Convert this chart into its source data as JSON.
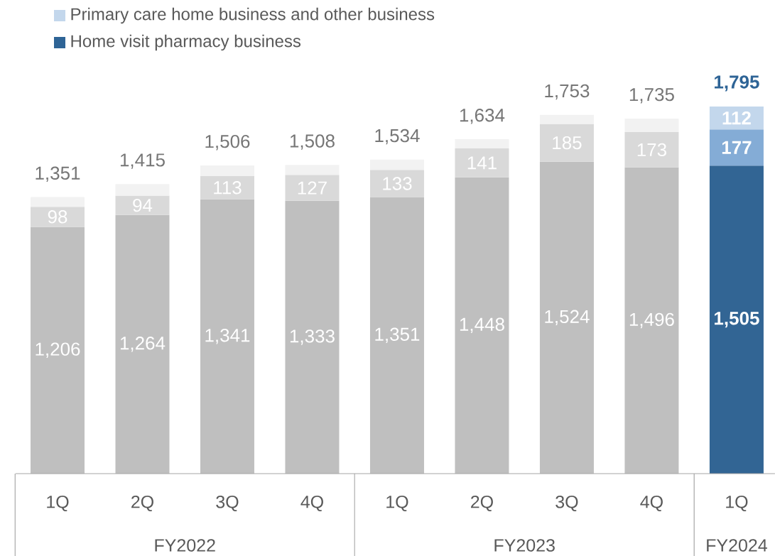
{
  "chart_data": {
    "type": "bar",
    "stacked": true,
    "legend": "top left",
    "categories": [
      "1Q",
      "2Q",
      "3Q",
      "4Q",
      "1Q",
      "2Q",
      "3Q",
      "4Q",
      "1Q"
    ],
    "annotations": [
      "FY2022",
      "FY2023",
      "FY2024"
    ],
    "series": [
      {
        "name": "Home visit pharmacy business",
        "color": "#2e6496",
        "values": [
          1206,
          1264,
          1341,
          1333,
          1351,
          1448,
          1524,
          1496,
          1505
        ],
        "colors": [
          "#bfbfbf",
          "#bfbfbf",
          "#bfbfbf",
          "#bfbfbf",
          "#bfbfbf",
          "#bfbfbf",
          "#bfbfbf",
          "#bfbfbf",
          "#326594"
        ],
        "value_labels": [
          "1,206",
          "1,264",
          "1,341",
          "1,333",
          "1,351",
          "1,448",
          "1,524",
          "1,496",
          "1,505"
        ]
      },
      {
        "values": [
          98,
          94,
          113,
          127,
          133,
          141,
          185,
          173,
          177
        ],
        "colors": [
          "#d9d9d9",
          "#d9d9d9",
          "#d9d9d9",
          "#d9d9d9",
          "#d9d9d9",
          "#d9d9d9",
          "#d9d9d9",
          "#d9d9d9",
          "#84acd6"
        ],
        "value_labels": [
          "98",
          "94",
          "113",
          "127",
          "133",
          "141",
          "185",
          "173",
          "177"
        ]
      },
      {
        "name": "Primary care home business and other business",
        "color": "#c3d7ec",
        "values": [
          47,
          57,
          52,
          48,
          50,
          45,
          44,
          66,
          112
        ],
        "colors": [
          "#f2f2f2",
          "#f2f2f2",
          "#f2f2f2",
          "#f2f2f2",
          "#f2f2f2",
          "#f2f2f2",
          "#f2f2f2",
          "#f2f2f2",
          "#c3d7ec"
        ],
        "value_labels": [
          null,
          null,
          null,
          null,
          null,
          null,
          null,
          null,
          "112"
        ]
      }
    ],
    "totals": [
      "1,351",
      "1,415",
      "1,506",
      "1,508",
      "1,534",
      "1,634",
      "1,753",
      "1,735",
      "1,795"
    ]
  }
}
